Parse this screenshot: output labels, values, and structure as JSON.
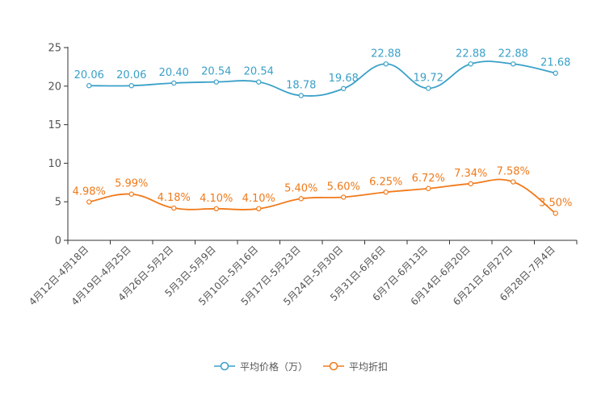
{
  "chart_data": {
    "type": "line",
    "title": "",
    "xlabel": "",
    "ylabel": "",
    "ylim": [
      0,
      25
    ],
    "yticks": [
      0,
      5,
      10,
      15,
      20,
      25
    ],
    "categories": [
      "4月12日-4月18日",
      "4月19日-4月25日",
      "4月26日-5月2日",
      "5月3日-5月9日",
      "5月10日-5月16日",
      "5月17日-5月23日",
      "5月24日-5月30日",
      "5月31日-6月6日",
      "6月7日-6月13日",
      "6月14日-6月20日",
      "6月21日-6月27日",
      "6月28日-7月4日"
    ],
    "series": [
      {
        "name": "平均价格（万）",
        "color": "#3aa0c8",
        "values": [
          20.06,
          20.06,
          20.4,
          20.54,
          20.54,
          18.78,
          19.68,
          22.88,
          19.72,
          22.88,
          22.88,
          21.68
        ],
        "labels": [
          "20.06",
          "20.06",
          "20.40",
          "20.54",
          "20.54",
          "18.78",
          "19.68",
          "22.88",
          "19.72",
          "22.88",
          "22.88",
          "21.68"
        ]
      },
      {
        "name": "平均折扣",
        "color": "#f07a1a",
        "values": [
          4.98,
          5.99,
          4.18,
          4.1,
          4.1,
          5.4,
          5.6,
          6.25,
          6.72,
          7.34,
          7.58,
          3.5
        ],
        "labels": [
          "4.98%",
          "5.99%",
          "4.18%",
          "4.10%",
          "4.10%",
          "5.40%",
          "5.60%",
          "6.25%",
          "6.72%",
          "7.34%",
          "7.58%",
          "3.50%"
        ]
      }
    ],
    "legend_position": "bottom"
  }
}
